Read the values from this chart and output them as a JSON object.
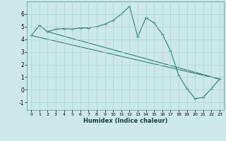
{
  "title": "",
  "xlabel": "Humidex (Indice chaleur)",
  "bg_color": "#cce8e8",
  "line_color": "#2e7d6e",
  "xlim": [
    -0.5,
    23.5
  ],
  "ylim": [
    -1.6,
    7.0
  ],
  "yticks": [
    -1,
    0,
    1,
    2,
    3,
    4,
    5,
    6
  ],
  "xticks": [
    0,
    1,
    2,
    3,
    4,
    5,
    6,
    7,
    8,
    9,
    10,
    11,
    12,
    13,
    14,
    15,
    16,
    17,
    18,
    19,
    20,
    21,
    22,
    23
  ],
  "series1_x": [
    0,
    1,
    2,
    3,
    4,
    5,
    6,
    7,
    8,
    9,
    10,
    11,
    12,
    13,
    14,
    15,
    16,
    17,
    18,
    19,
    20,
    21,
    22,
    23
  ],
  "series1_y": [
    4.3,
    5.1,
    4.6,
    4.8,
    4.85,
    4.8,
    4.9,
    4.9,
    5.0,
    5.2,
    5.5,
    6.0,
    6.6,
    4.2,
    5.7,
    5.3,
    4.4,
    3.1,
    1.15,
    0.1,
    -0.7,
    -0.6,
    0.1,
    0.85
  ],
  "line2_x": [
    0,
    23
  ],
  "line2_y": [
    4.3,
    0.85
  ],
  "line3_x": [
    2,
    23
  ],
  "line3_y": [
    4.6,
    0.85
  ],
  "grid_color": "#aad4d4",
  "marker": "+"
}
